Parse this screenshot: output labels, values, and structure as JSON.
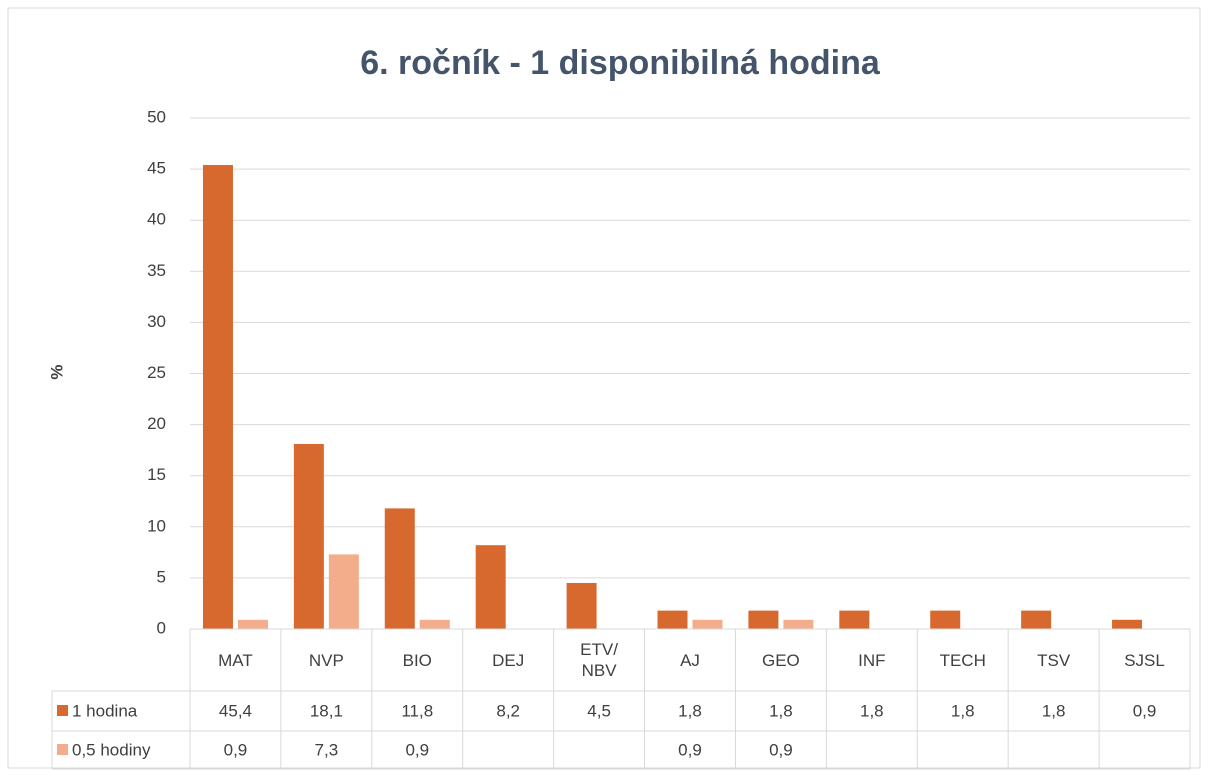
{
  "chart_data": {
    "type": "bar",
    "title": "6. ročník - 1 disponibilná hodina",
    "y_label": "%",
    "categories": [
      "MAT",
      "NVP",
      "BIO",
      "DEJ",
      "ETV/\nNBV",
      "AJ",
      "GEO",
      "INF",
      "TECH",
      "TSV",
      "SJSL"
    ],
    "series": [
      {
        "name": "1 hodina",
        "color": "#d7692f",
        "values": [
          45.4,
          18.1,
          11.8,
          8.2,
          4.5,
          1.8,
          1.8,
          1.8,
          1.8,
          1.8,
          0.9
        ],
        "value_labels": [
          "45,4",
          "18,1",
          "11,8",
          "8,2",
          "4,5",
          "1,8",
          "1,8",
          "1,8",
          "1,8",
          "1,8",
          "0,9"
        ]
      },
      {
        "name": "0,5 hodiny",
        "color": "#f4ad8b",
        "values": [
          0.9,
          7.3,
          0.9,
          null,
          null,
          0.9,
          0.9,
          null,
          null,
          null,
          null
        ],
        "value_labels": [
          "0,9",
          "7,3",
          "0,9",
          null,
          null,
          "0,9",
          "0,9",
          null,
          null,
          null,
          null
        ]
      }
    ],
    "ylim": [
      0,
      50
    ],
    "yticks": [
      0,
      5,
      10,
      15,
      20,
      25,
      30,
      35,
      40,
      45,
      50
    ],
    "grid": true
  }
}
